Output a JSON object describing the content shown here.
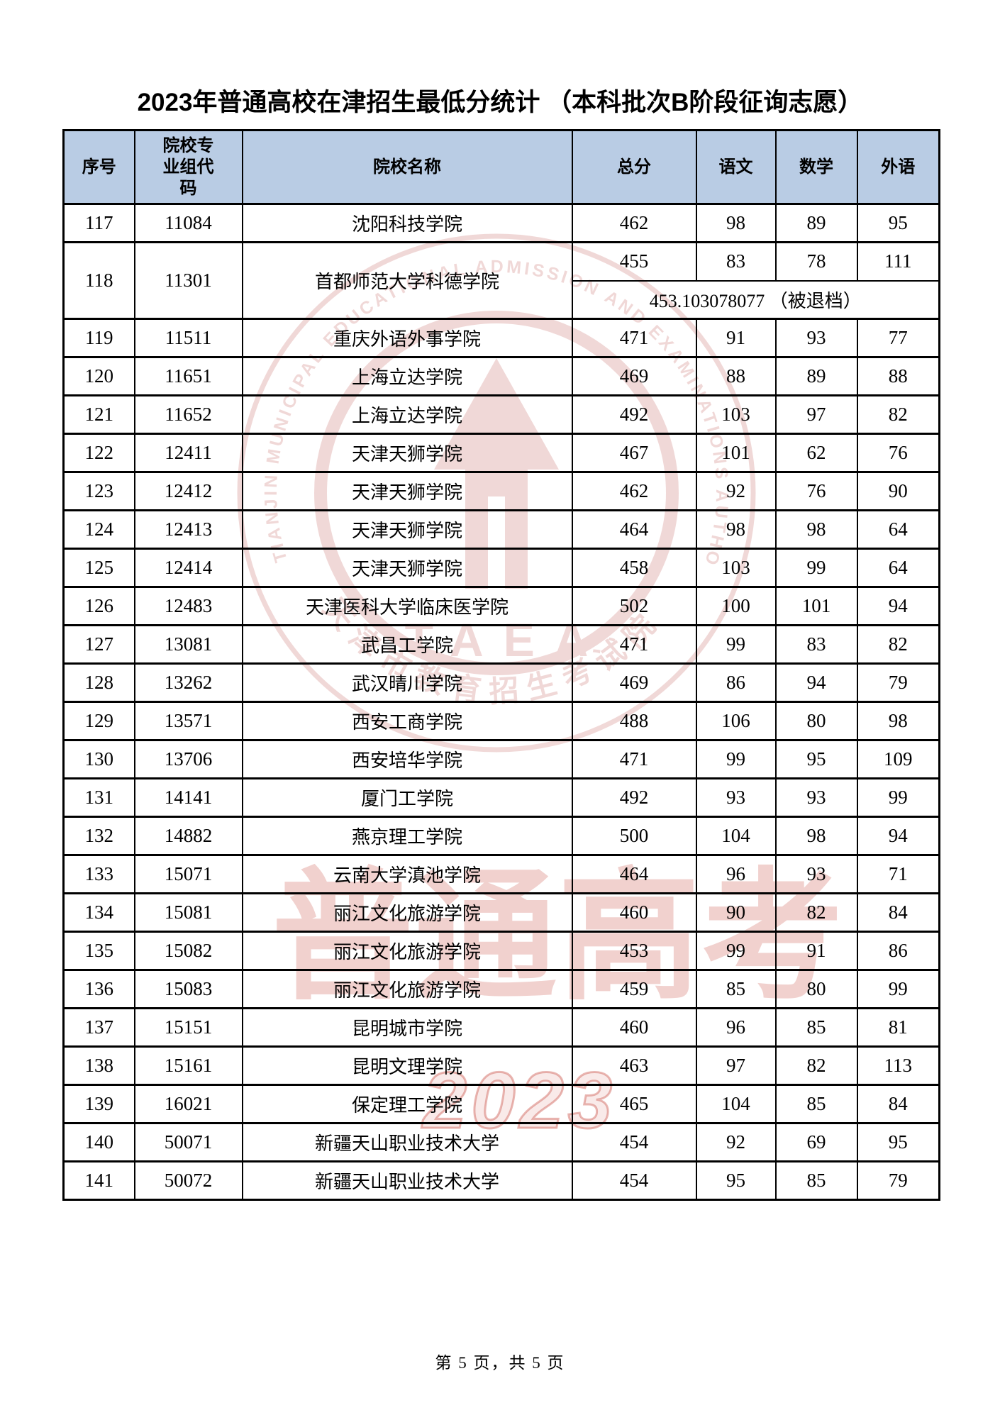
{
  "title": "2023年普通高校在津招生最低分统计 （本科批次B阶段征询志愿）",
  "footer": "第 5 页，共 5 页",
  "colors": {
    "header_bg": "#b9cce4",
    "border": "#000000",
    "watermark": "#c0504d"
  },
  "watermark": {
    "big_text": "普通高考",
    "year": "2023",
    "seal": {
      "ring_text_en": "TIANJIN MUNICIPAL EDUCATIONAL ADMISSION AND EXAMINATIONS AUTHORITY",
      "ring_text_zh": "天津市教育招生考试院",
      "center_text": "TAEA"
    }
  },
  "table": {
    "headers": [
      "序号",
      "院校专业组代码",
      "院校名称",
      "总分",
      "语文",
      "数学",
      "外语"
    ],
    "rows": [
      {
        "no": "117",
        "code": "11084",
        "name": "沈阳科技学院",
        "total": "462",
        "chinese": "98",
        "math": "89",
        "foreign": "95"
      },
      {
        "no": "118",
        "code": "11301",
        "name": "首都师范大学科德学院",
        "total": "455",
        "chinese": "83",
        "math": "78",
        "foreign": "111",
        "note": "453.103078077 （被退档）"
      },
      {
        "no": "119",
        "code": "11511",
        "name": "重庆外语外事学院",
        "total": "471",
        "chinese": "91",
        "math": "93",
        "foreign": "77"
      },
      {
        "no": "120",
        "code": "11651",
        "name": "上海立达学院",
        "total": "469",
        "chinese": "88",
        "math": "89",
        "foreign": "88"
      },
      {
        "no": "121",
        "code": "11652",
        "name": "上海立达学院",
        "total": "492",
        "chinese": "103",
        "math": "97",
        "foreign": "82"
      },
      {
        "no": "122",
        "code": "12411",
        "name": "天津天狮学院",
        "total": "467",
        "chinese": "101",
        "math": "62",
        "foreign": "76"
      },
      {
        "no": "123",
        "code": "12412",
        "name": "天津天狮学院",
        "total": "462",
        "chinese": "92",
        "math": "76",
        "foreign": "90"
      },
      {
        "no": "124",
        "code": "12413",
        "name": "天津天狮学院",
        "total": "464",
        "chinese": "98",
        "math": "98",
        "foreign": "64"
      },
      {
        "no": "125",
        "code": "12414",
        "name": "天津天狮学院",
        "total": "458",
        "chinese": "103",
        "math": "99",
        "foreign": "64"
      },
      {
        "no": "126",
        "code": "12483",
        "name": "天津医科大学临床医学院",
        "total": "502",
        "chinese": "100",
        "math": "101",
        "foreign": "94"
      },
      {
        "no": "127",
        "code": "13081",
        "name": "武昌工学院",
        "total": "471",
        "chinese": "99",
        "math": "83",
        "foreign": "82"
      },
      {
        "no": "128",
        "code": "13262",
        "name": "武汉晴川学院",
        "total": "469",
        "chinese": "86",
        "math": "94",
        "foreign": "79"
      },
      {
        "no": "129",
        "code": "13571",
        "name": "西安工商学院",
        "total": "488",
        "chinese": "106",
        "math": "80",
        "foreign": "98"
      },
      {
        "no": "130",
        "code": "13706",
        "name": "西安培华学院",
        "total": "471",
        "chinese": "99",
        "math": "95",
        "foreign": "109"
      },
      {
        "no": "131",
        "code": "14141",
        "name": "厦门工学院",
        "total": "492",
        "chinese": "93",
        "math": "93",
        "foreign": "99"
      },
      {
        "no": "132",
        "code": "14882",
        "name": "燕京理工学院",
        "total": "500",
        "chinese": "104",
        "math": "98",
        "foreign": "94"
      },
      {
        "no": "133",
        "code": "15071",
        "name": "云南大学滇池学院",
        "total": "464",
        "chinese": "96",
        "math": "93",
        "foreign": "71"
      },
      {
        "no": "134",
        "code": "15081",
        "name": "丽江文化旅游学院",
        "total": "460",
        "chinese": "90",
        "math": "82",
        "foreign": "84"
      },
      {
        "no": "135",
        "code": "15082",
        "name": "丽江文化旅游学院",
        "total": "453",
        "chinese": "99",
        "math": "91",
        "foreign": "86"
      },
      {
        "no": "136",
        "code": "15083",
        "name": "丽江文化旅游学院",
        "total": "459",
        "chinese": "85",
        "math": "80",
        "foreign": "99"
      },
      {
        "no": "137",
        "code": "15151",
        "name": "昆明城市学院",
        "total": "460",
        "chinese": "96",
        "math": "85",
        "foreign": "81"
      },
      {
        "no": "138",
        "code": "15161",
        "name": "昆明文理学院",
        "total": "463",
        "chinese": "97",
        "math": "82",
        "foreign": "113"
      },
      {
        "no": "139",
        "code": "16021",
        "name": "保定理工学院",
        "total": "465",
        "chinese": "104",
        "math": "85",
        "foreign": "84"
      },
      {
        "no": "140",
        "code": "50071",
        "name": "新疆天山职业技术大学",
        "total": "454",
        "chinese": "92",
        "math": "69",
        "foreign": "95"
      },
      {
        "no": "141",
        "code": "50072",
        "name": "新疆天山职业技术大学",
        "total": "454",
        "chinese": "95",
        "math": "85",
        "foreign": "79"
      }
    ]
  }
}
